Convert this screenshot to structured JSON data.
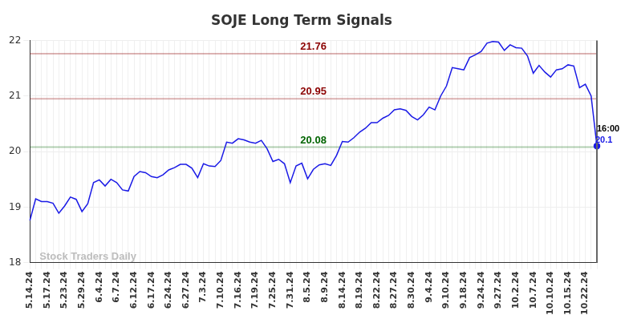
{
  "chart_data": {
    "type": "line",
    "title": "SOJE Long Term Signals",
    "categories": [
      "5.14.24",
      null,
      null,
      "5.17.24",
      null,
      null,
      "5.23.24",
      null,
      null,
      "5.29.24",
      null,
      null,
      "6.4.24",
      null,
      null,
      "6.7.24",
      null,
      null,
      "6.12.24",
      null,
      null,
      "6.17.24",
      null,
      null,
      "6.24.24",
      null,
      null,
      "6.27.24",
      null,
      null,
      "7.3.24",
      null,
      null,
      "7.10.24",
      null,
      null,
      "7.16.24",
      null,
      null,
      "7.19.24",
      null,
      null,
      "7.25.24",
      null,
      null,
      "7.31.24",
      null,
      null,
      "8.5.24",
      null,
      null,
      "8.9.24",
      null,
      null,
      "8.14.24",
      null,
      null,
      "8.19.24",
      null,
      null,
      "8.22.24",
      null,
      null,
      "8.27.24",
      null,
      null,
      "8.30.24",
      null,
      null,
      "9.4.24",
      null,
      null,
      "9.10.24",
      null,
      null,
      "9.18.24",
      null,
      null,
      "9.24.24",
      null,
      null,
      "9.27.24",
      null,
      null,
      "10.2.24",
      null,
      null,
      "10.7.24",
      null,
      null,
      "10.10.24",
      null,
      null,
      "10.15.24",
      null,
      null,
      "10.22.24",
      null,
      null
    ],
    "values": [
      18.76,
      19.15,
      19.1,
      19.1,
      19.07,
      18.89,
      19.02,
      19.18,
      19.14,
      18.92,
      19.06,
      19.44,
      19.49,
      19.38,
      19.5,
      19.44,
      19.31,
      19.29,
      19.55,
      19.64,
      19.62,
      19.55,
      19.53,
      19.58,
      19.67,
      19.71,
      19.77,
      19.77,
      19.7,
      19.53,
      19.78,
      19.74,
      19.73,
      19.84,
      20.17,
      20.15,
      20.23,
      20.21,
      20.17,
      20.15,
      20.2,
      20.05,
      19.82,
      19.86,
      19.78,
      19.44,
      19.74,
      19.79,
      19.51,
      19.68,
      19.76,
      19.78,
      19.75,
      19.93,
      20.18,
      20.17,
      20.25,
      20.35,
      20.42,
      20.52,
      20.52,
      20.6,
      20.65,
      20.75,
      20.77,
      20.74,
      20.63,
      20.57,
      20.66,
      20.8,
      20.75,
      21.0,
      21.18,
      21.51,
      21.49,
      21.47,
      21.69,
      21.74,
      21.8,
      21.95,
      21.98,
      21.97,
      21.82,
      21.92,
      21.87,
      21.86,
      21.72,
      21.41,
      21.55,
      21.43,
      21.34,
      21.47,
      21.49,
      21.56,
      21.54,
      21.15,
      21.21,
      21.0,
      20.1
    ],
    "value_labels": [
      null,
      null,
      null,
      null,
      null,
      null,
      null,
      null,
      null,
      null,
      null,
      null,
      null,
      null,
      null,
      null,
      null,
      null,
      null,
      null,
      null,
      null,
      null,
      null,
      null,
      null,
      null,
      null,
      null,
      null,
      null,
      null,
      null,
      null,
      null,
      null,
      null,
      null,
      null,
      null,
      null,
      null,
      null,
      null,
      null,
      null,
      null,
      null,
      null,
      null,
      null,
      null,
      null,
      null,
      null,
      null,
      null,
      null,
      null,
      null,
      null,
      null,
      null,
      null,
      null,
      null,
      null,
      null,
      null,
      null,
      null,
      null,
      null,
      null,
      null,
      null,
      null,
      null,
      null,
      null,
      null,
      null,
      null,
      null,
      null,
      null,
      null,
      null,
      null,
      null,
      null,
      null,
      null,
      null,
      null,
      null,
      null,
      null,
      "20.1"
    ],
    "color": "#1a1ae6",
    "ylim": [
      18,
      22
    ],
    "yticks": [
      18,
      19,
      20,
      21,
      22
    ],
    "grid": true,
    "lines": [
      {
        "value": 21.76,
        "color": "#8b0000"
      },
      {
        "value": 20.95,
        "color": "#8b0000"
      },
      {
        "value": 20.08,
        "color": "#006400"
      }
    ],
    "time_label": "16:00",
    "watermark": "Stock Traders Daily"
  }
}
